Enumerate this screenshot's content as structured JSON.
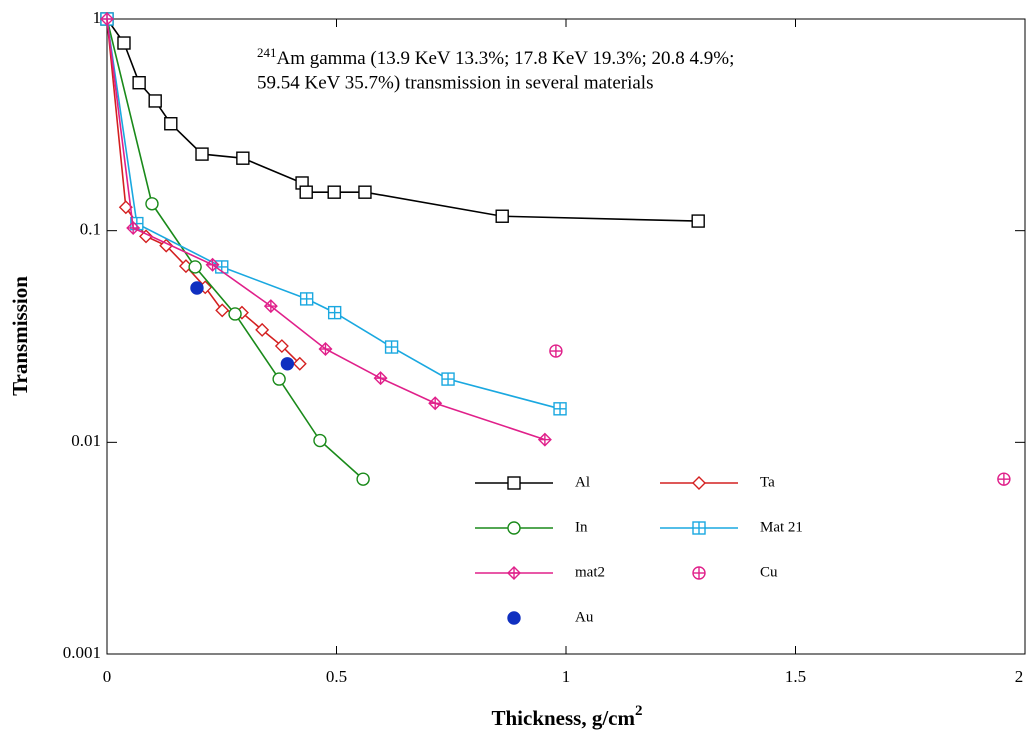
{
  "chart_data": {
    "type": "line",
    "title_prefix": "241",
    "title_line1": "Am gamma (13.9 KeV 13.3%; 17.8 KeV 19.3%; 20.8 4.9%;",
    "title_line2": "59.54 KeV 35.7%) transmission in several materials",
    "xlabel": "Thickness, g/cm",
    "xlabel_superscript": "2",
    "ylabel": "Transmission",
    "xlim": [
      0,
      2
    ],
    "xticks": [
      0,
      0.5,
      1,
      1.5,
      2
    ],
    "ylim": [
      0.001,
      1
    ],
    "yticks": [
      0.001,
      0.01,
      0.1,
      1
    ],
    "ylog": true,
    "series": [
      {
        "name": "Al",
        "color": "#000000",
        "marker": "square",
        "line": true,
        "x": [
          0,
          0.037,
          0.07,
          0.105,
          0.139,
          0.207,
          0.296,
          0.425,
          0.434,
          0.495,
          0.562,
          0.861,
          1.288
        ],
        "values": [
          1,
          0.77,
          0.5,
          0.41,
          0.32,
          0.23,
          0.22,
          0.168,
          0.152,
          0.152,
          0.152,
          0.117,
          0.111
        ]
      },
      {
        "name": "Ta",
        "color": "#d42020",
        "marker": "diamond",
        "line": true,
        "x": [
          0,
          0.041,
          0.085,
          0.129,
          0.172,
          0.214,
          0.251,
          0.294,
          0.338,
          0.381,
          0.42
        ],
        "values": [
          1,
          0.129,
          0.094,
          0.085,
          0.068,
          0.054,
          0.042,
          0.041,
          0.034,
          0.0285,
          0.0235
        ]
      },
      {
        "name": "In",
        "color": "#1a8a1a",
        "marker": "circle",
        "line": true,
        "x": [
          0,
          0.098,
          0.192,
          0.279,
          0.375,
          0.464,
          0.558
        ],
        "values": [
          1,
          0.134,
          0.0674,
          0.0404,
          0.0199,
          0.0102,
          0.0067
        ]
      },
      {
        "name": "Mat 21",
        "color": "#1aa8e0",
        "marker": "square-plus",
        "line": true,
        "x": [
          0,
          0.065,
          0.25,
          0.435,
          0.496,
          0.62,
          0.743,
          0.987
        ],
        "values": [
          1,
          0.108,
          0.0674,
          0.0476,
          0.041,
          0.0282,
          0.0199,
          0.0144
        ]
      },
      {
        "name": "mat2",
        "color": "#e0208a",
        "marker": "diamond-plus",
        "line": true,
        "x": [
          0,
          0.057,
          0.23,
          0.357,
          0.476,
          0.596,
          0.715,
          0.954
        ],
        "values": [
          1,
          0.103,
          0.069,
          0.044,
          0.0276,
          0.0201,
          0.0153,
          0.0103
        ]
      },
      {
        "name": "Cu",
        "color": "#e0208a",
        "marker": "circle-plus",
        "line": false,
        "x": [
          0.978,
          1.954
        ],
        "values": [
          0.027,
          0.0067
        ]
      },
      {
        "name": "Au",
        "color": "#1030c0",
        "marker": "filled-circle",
        "line": false,
        "x": [
          0.196,
          0.393
        ],
        "values": [
          0.0536,
          0.0235
        ]
      }
    ]
  }
}
